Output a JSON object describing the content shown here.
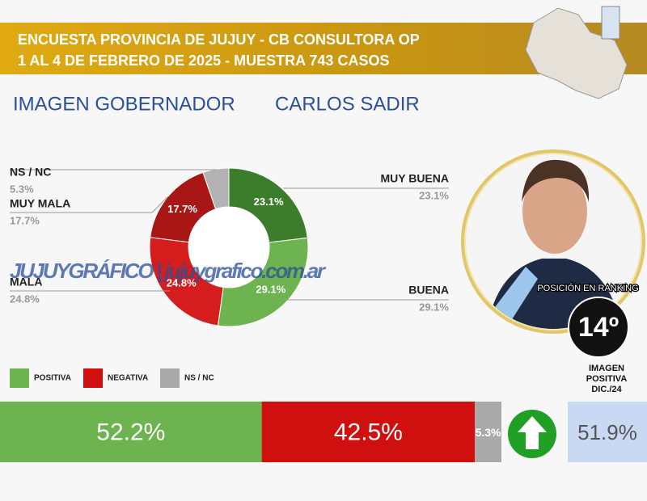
{
  "header": {
    "line1": "ENCUESTA PROVINCIA DE JUJUY - CB CONSULTORA OP",
    "line2": "1 AL 4 DE FEBRERO DE 2025 - MUESTRA 743 CASOS"
  },
  "title": {
    "left": "IMAGEN GOBERNADOR",
    "right": "CARLOS SADIR"
  },
  "watermark": "JUJUYGRÁFICO | jujuygrafico.com.ar",
  "ranking": {
    "label": "POSICIÓN EN RANKING",
    "value": "14º"
  },
  "chart_data": [
    {
      "type": "donut",
      "categories": [
        "MUY BUENA",
        "BUENA",
        "MALA",
        "MUY MALA",
        "NS / NC"
      ],
      "values": [
        23.1,
        29.1,
        24.8,
        17.7,
        5.3
      ],
      "value_labels": [
        "23.1%",
        "29.1%",
        "24.8%",
        "17.7%",
        "5.3%"
      ],
      "colors": [
        "#3b7d2b",
        "#6db34f",
        "#d61d1d",
        "#a81616",
        "#b3b3b3"
      ]
    },
    {
      "type": "stacked-bar",
      "series": [
        {
          "name": "POSITIVA",
          "color": "#6db34f",
          "values": [
            52.2
          ],
          "value_labels": [
            "52.2%"
          ]
        },
        {
          "name": "NEGATIVA",
          "color": "#d00f0f",
          "values": [
            42.5
          ],
          "value_labels": [
            "42.5%"
          ]
        },
        {
          "name": "NS / NC",
          "color": "#a9a9a9",
          "values": [
            5.3
          ],
          "value_labels": [
            "5.3%"
          ]
        }
      ]
    },
    {
      "type": "reference",
      "label": "IMAGEN\nPOSITIVA\nDIC./24",
      "values": [
        51.9
      ],
      "value_labels": [
        "51.9%"
      ],
      "color": "#c9d8f3"
    }
  ]
}
